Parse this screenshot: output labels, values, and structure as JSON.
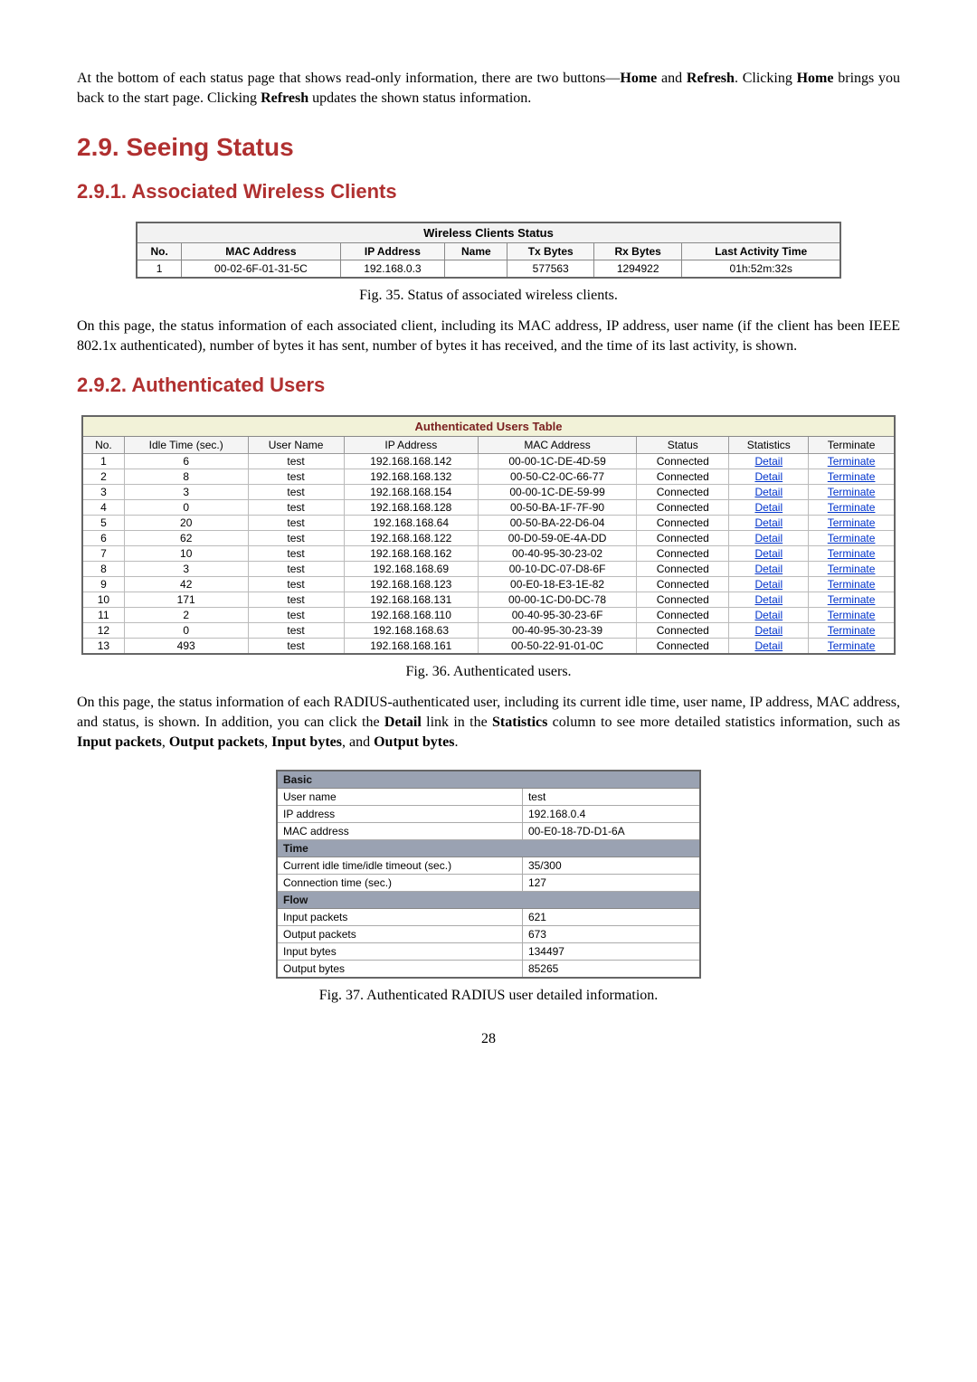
{
  "intro": {
    "prefix": "At the bottom of each status page that shows read-only information, there are two buttons—",
    "home": "Home",
    "and": " and ",
    "refresh": "Refresh",
    "sent1b": ". Clicking ",
    "home2": "Home",
    "sent1c": " brings you back to the start page. Clicking ",
    "refresh2": "Refresh",
    "sent1d": " updates the shown status information."
  },
  "sec29": "2.9. Seeing Status",
  "sec291": "2.9.1. Associated Wireless Clients",
  "sec292": "2.9.2. Authenticated Users",
  "wc": {
    "title": "Wireless Clients Status",
    "headers": [
      "No.",
      "MAC Address",
      "IP Address",
      "Name",
      "Tx Bytes",
      "Rx Bytes",
      "Last Activity Time"
    ],
    "row": {
      "no": "1",
      "mac": "00-02-6F-01-31-5C",
      "ip": "192.168.0.3",
      "name": "",
      "tx": "577563",
      "rx": "1294922",
      "last": "01h:52m:32s"
    },
    "caption": "Fig. 35. Status of associated wireless clients."
  },
  "para_wc": "On this page, the status information of each associated client, including its MAC address, IP address, user name (if the client has been IEEE 802.1x authenticated), number of bytes it has sent, number of bytes it has received, and the time of its last activity, is shown.",
  "au": {
    "title": "Authenticated Users Table",
    "headers": [
      "No.",
      "Idle Time (sec.)",
      "User Name",
      "IP Address",
      "MAC Address",
      "Status",
      "Statistics",
      "Terminate"
    ],
    "detail_label": "Detail",
    "terminate_label": "Terminate",
    "rows": [
      {
        "no": "1",
        "idle": "6",
        "user": "test",
        "ip": "192.168.168.142",
        "mac": "00-00-1C-DE-4D-59",
        "status": "Connected"
      },
      {
        "no": "2",
        "idle": "8",
        "user": "test",
        "ip": "192.168.168.132",
        "mac": "00-50-C2-0C-66-77",
        "status": "Connected"
      },
      {
        "no": "3",
        "idle": "3",
        "user": "test",
        "ip": "192.168.168.154",
        "mac": "00-00-1C-DE-59-99",
        "status": "Connected"
      },
      {
        "no": "4",
        "idle": "0",
        "user": "test",
        "ip": "192.168.168.128",
        "mac": "00-50-BA-1F-7F-90",
        "status": "Connected"
      },
      {
        "no": "5",
        "idle": "20",
        "user": "test",
        "ip": "192.168.168.64",
        "mac": "00-50-BA-22-D6-04",
        "status": "Connected"
      },
      {
        "no": "6",
        "idle": "62",
        "user": "test",
        "ip": "192.168.168.122",
        "mac": "00-D0-59-0E-4A-DD",
        "status": "Connected"
      },
      {
        "no": "7",
        "idle": "10",
        "user": "test",
        "ip": "192.168.168.162",
        "mac": "00-40-95-30-23-02",
        "status": "Connected"
      },
      {
        "no": "8",
        "idle": "3",
        "user": "test",
        "ip": "192.168.168.69",
        "mac": "00-10-DC-07-D8-6F",
        "status": "Connected"
      },
      {
        "no": "9",
        "idle": "42",
        "user": "test",
        "ip": "192.168.168.123",
        "mac": "00-E0-18-E3-1E-82",
        "status": "Connected"
      },
      {
        "no": "10",
        "idle": "171",
        "user": "test",
        "ip": "192.168.168.131",
        "mac": "00-00-1C-D0-DC-78",
        "status": "Connected"
      },
      {
        "no": "11",
        "idle": "2",
        "user": "test",
        "ip": "192.168.168.110",
        "mac": "00-40-95-30-23-6F",
        "status": "Connected"
      },
      {
        "no": "12",
        "idle": "0",
        "user": "test",
        "ip": "192.168.168.63",
        "mac": "00-40-95-30-23-39",
        "status": "Connected"
      },
      {
        "no": "13",
        "idle": "493",
        "user": "test",
        "ip": "192.168.168.161",
        "mac": "00-50-22-91-01-0C",
        "status": "Connected"
      }
    ],
    "caption": "Fig. 36. Authenticated users."
  },
  "para_au": {
    "a": "On this page, the status information of each RADIUS-authenticated user, including its current idle time, user name, IP address, MAC address, and status, is shown. In addition, you can click the ",
    "detail": "Detail",
    "b": " link in the ",
    "stats": "Statistics",
    "c": " column to see more detailed statistics information, such as ",
    "ip": "Input packets",
    "comma1": ", ",
    "op": "Output packets",
    "comma2": ", ",
    "ib": "Input bytes",
    "and": ", and ",
    "ob": "Output bytes",
    "end": "."
  },
  "dt": {
    "groups": {
      "basic": "Basic",
      "time": "Time",
      "flow": "Flow"
    },
    "rows": {
      "user_name_lbl": "User name",
      "user_name_val": "test",
      "ip_lbl": "IP address",
      "ip_val": "192.168.0.4",
      "mac_lbl": "MAC address",
      "mac_val": "00-E0-18-7D-D1-6A",
      "idle_lbl": "Current idle time/idle timeout (sec.)",
      "idle_val": "35/300",
      "conn_lbl": "Connection time (sec.)",
      "conn_val": "127",
      "inpkt_lbl": "Input packets",
      "inpkt_val": "621",
      "outpkt_lbl": "Output packets",
      "outpkt_val": "673",
      "inb_lbl": "Input bytes",
      "inb_val": "134497",
      "outb_lbl": "Output bytes",
      "outb_val": "85265"
    },
    "caption": "Fig. 37. Authenticated RADIUS user detailed information."
  },
  "pagenum": "28"
}
